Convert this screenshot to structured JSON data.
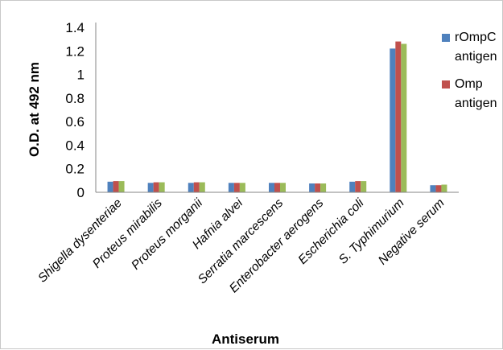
{
  "chart_data": {
    "type": "bar",
    "title": "",
    "xlabel": "Antiserum",
    "ylabel": "O.D. at 492 nm",
    "ylim": [
      0,
      1.4
    ],
    "yticks": [
      "0",
      "0.2",
      "0.4",
      "0.6",
      "0.8",
      "1",
      "1.2",
      "1.4"
    ],
    "grid": false,
    "legend_position": "right",
    "categories": [
      "Shigella dysenteriae",
      "Proteus mirabilis",
      "Proteus morganii",
      "Hafnia alvei",
      "Serratia marcescens",
      "Enterobacter aerogens",
      "Escherichia coli",
      "S. Typhimurium",
      "Negative serum"
    ],
    "series": [
      {
        "name": "rOmpC antigen",
        "color": "#4f81bd",
        "values": [
          0.09,
          0.08,
          0.08,
          0.08,
          0.08,
          0.075,
          0.09,
          1.22,
          0.06
        ]
      },
      {
        "name": "Omp antigen",
        "color": "#c0504d",
        "values": [
          0.095,
          0.085,
          0.085,
          0.08,
          0.08,
          0.075,
          0.095,
          1.28,
          0.06
        ]
      },
      {
        "color": "#9bbb59",
        "values": [
          0.095,
          0.085,
          0.085,
          0.08,
          0.08,
          0.075,
          0.095,
          1.26,
          0.065
        ]
      }
    ],
    "legend_lines": [
      [
        "rOmpC",
        "antigen"
      ],
      [
        "Omp",
        "antigen"
      ]
    ]
  }
}
